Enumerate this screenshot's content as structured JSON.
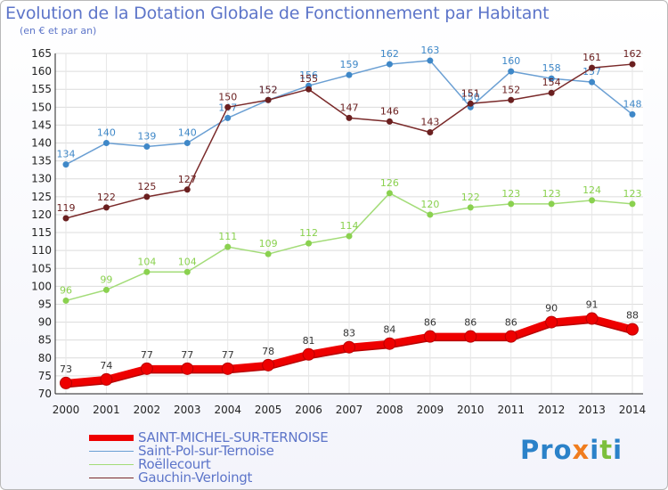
{
  "title": "Evolution de la Dotation Globale de Fonctionnement par Habitant",
  "subtitle": "(en € et par an)",
  "brand": {
    "letters": [
      "P",
      "r",
      "o",
      "x",
      "i",
      "t",
      "i"
    ],
    "colors": [
      "#2b82c9",
      "#2b82c9",
      "#2b82c9",
      "#f07d1e",
      "#2b82c9",
      "#7cbf3c",
      "#2b82c9"
    ]
  },
  "chart_data": {
    "type": "line",
    "title": "Evolution de la Dotation Globale de Fonctionnement par Habitant",
    "subtitle": "(en € et par an)",
    "xlabel": "",
    "ylabel": "",
    "ylim": [
      70,
      165
    ],
    "yticks": [
      70,
      75,
      80,
      85,
      90,
      95,
      100,
      105,
      110,
      115,
      120,
      125,
      130,
      135,
      140,
      145,
      150,
      155,
      160,
      165
    ],
    "categories": [
      "2000",
      "2001",
      "2002",
      "2003",
      "2004",
      "2005",
      "2006",
      "2007",
      "2008",
      "2009",
      "2010",
      "2011",
      "2012",
      "2013",
      "2014"
    ],
    "series": [
      {
        "name": "Saint-Pol-sur-Ternoise",
        "color": "#6a9fd3",
        "marker": "#3f88c8",
        "values": [
          134,
          140,
          139,
          140,
          147,
          152,
          156,
          159,
          162,
          163,
          150,
          160,
          158,
          157,
          148
        ],
        "labels": [
          "134",
          "140",
          "139",
          "140",
          "147",
          "152",
          "156",
          "159",
          "162",
          "163",
          "150",
          "160",
          "158",
          "157",
          "148"
        ]
      },
      {
        "name": "Gauchin-Verloingt",
        "color": "#7a2a2a",
        "marker": "#6b2020",
        "values": [
          119,
          122,
          125,
          127,
          150,
          152,
          155,
          147,
          146,
          143,
          151,
          152,
          154,
          161,
          162
        ],
        "labels": [
          "119",
          "122",
          "125",
          "127",
          "150",
          "152",
          "155",
          "147",
          "146",
          "143",
          "151",
          "152",
          "154",
          "161",
          "162"
        ]
      },
      {
        "name": "Roëllecourt",
        "color": "#a3dc78",
        "marker": "#8ad14f",
        "values": [
          96,
          99,
          104,
          104,
          111,
          109,
          112,
          114,
          126,
          120,
          122,
          123,
          123,
          124,
          123
        ],
        "labels": [
          "96",
          "99",
          "104",
          "104",
          "111",
          "109",
          "112",
          "114",
          "126",
          "120",
          "122",
          "123",
          "123",
          "124",
          "123"
        ]
      },
      {
        "name": "SAINT-MICHEL-SUR-TERNOISE",
        "color": "#ee0000",
        "marker": "#ee0000",
        "values": [
          73,
          74,
          77,
          77,
          77,
          78,
          81,
          83,
          84,
          86,
          86,
          86,
          90,
          91,
          88
        ],
        "labels": [
          "73",
          "74",
          "77",
          "77",
          "77",
          "78",
          "81",
          "83",
          "84",
          "86",
          "86",
          "86",
          "90",
          "91",
          "88"
        ]
      }
    ],
    "legend": {
      "position": "bottom-left",
      "items": [
        {
          "label": "SAINT-MICHEL-SUR-TERNOISE",
          "color": "#ee0000"
        },
        {
          "label": "Saint-Pol-sur-Ternoise",
          "color": "#6a9fd3"
        },
        {
          "label": "Roëllecourt",
          "color": "#a3dc78"
        },
        {
          "label": "Gauchin-Verloingt",
          "color": "#7a2a2a"
        }
      ]
    }
  }
}
